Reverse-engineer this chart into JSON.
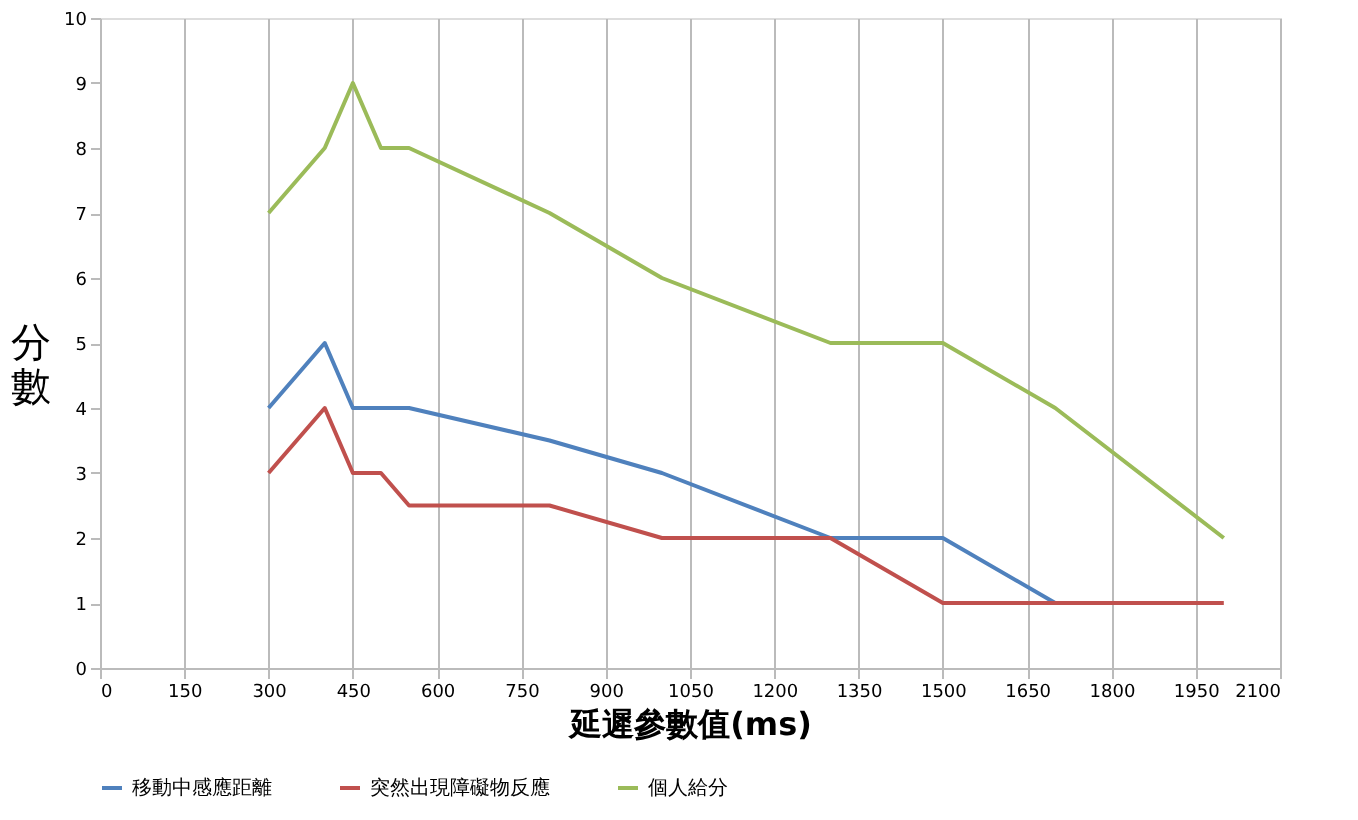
{
  "chart_data": {
    "type": "line",
    "xlabel": "延遲參數值(ms)",
    "ylabel": "分數",
    "x": [
      300,
      400,
      450,
      500,
      550,
      800,
      1000,
      1300,
      1500,
      1700,
      2000
    ],
    "series": [
      {
        "name": "移動中感應距離",
        "color": "#4f81bd",
        "values": [
          4,
          5,
          4,
          4,
          4,
          3.5,
          3,
          2,
          2,
          1,
          null
        ]
      },
      {
        "name": "突然出現障礙物反應",
        "color": "#c0504d",
        "values": [
          3,
          4,
          3,
          3,
          2.5,
          2.5,
          2,
          2,
          1,
          1,
          1
        ]
      },
      {
        "name": "個人給分",
        "color": "#9bbb59",
        "values": [
          7,
          8,
          9,
          8,
          8,
          7,
          6,
          5,
          5,
          4,
          2
        ]
      }
    ],
    "xlim": [
      0,
      2100
    ],
    "xticks": [
      0,
      150,
      300,
      450,
      600,
      750,
      900,
      1050,
      1200,
      1350,
      1500,
      1650,
      1800,
      1950,
      2100
    ],
    "ylim": [
      0,
      10
    ],
    "yticks": [
      0,
      1,
      2,
      3,
      4,
      5,
      6,
      7,
      8,
      9,
      10
    ],
    "grid": "x",
    "legend": "bottom",
    "marker": "none",
    "line_style": "solid"
  }
}
